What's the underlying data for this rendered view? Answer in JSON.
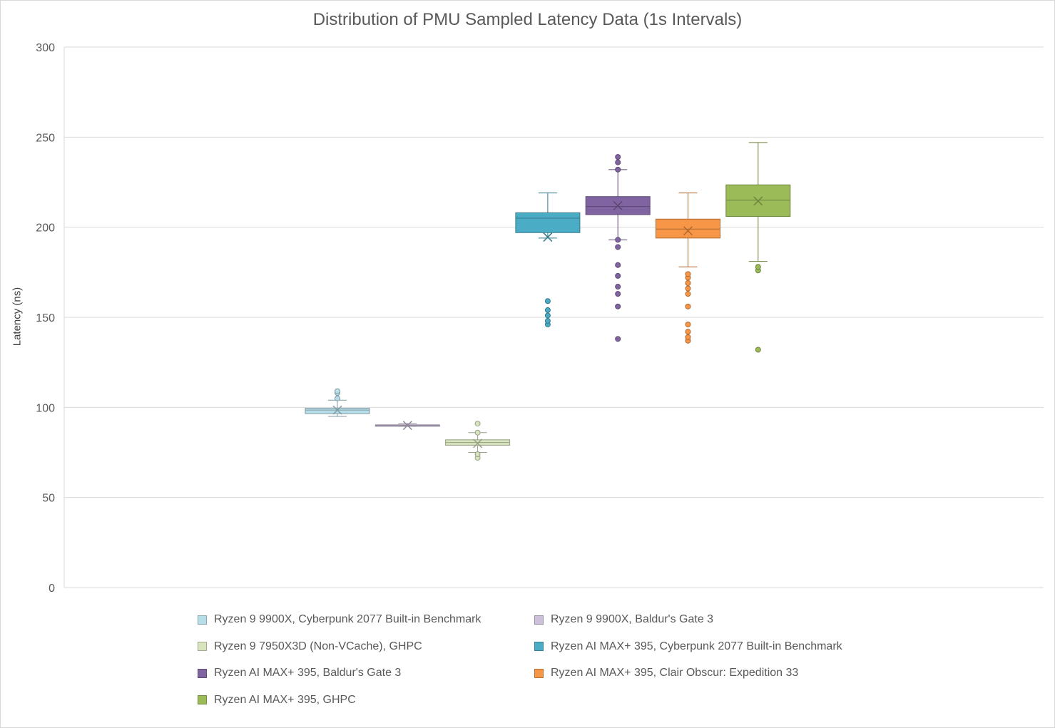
{
  "chart_data": {
    "type": "box",
    "title": "Distribution of PMU Sampled Latency Data (1s Intervals)",
    "xlabel": "",
    "ylabel": "Latency (ns)",
    "ylim": [
      0,
      300
    ],
    "yticks": [
      0,
      50,
      100,
      150,
      200,
      250,
      300
    ],
    "grid": true,
    "legend_position": "bottom",
    "series": [
      {
        "name": "Ryzen 9 9900X, Cyberpunk 2077 Built-in Benchmark",
        "color": "#b7dee8",
        "min": 95,
        "q1": 96.5,
        "median": 98.5,
        "q3": 99.5,
        "max": 104,
        "mean": 98.5,
        "outliers": [
          105,
          108,
          109
        ]
      },
      {
        "name": "Ryzen 9 9900X, Baldur's Gate 3",
        "color": "#ccc0da",
        "min": 89.5,
        "q1": 89.5,
        "median": 90,
        "q3": 90.3,
        "max": 91,
        "mean": 90,
        "outliers": []
      },
      {
        "name": "Ryzen 9 7950X3D (Non-VCache), GHPC",
        "color": "#d7e4bd",
        "min": 75,
        "q1": 79,
        "median": 80.5,
        "q3": 82,
        "max": 86,
        "mean": 80,
        "outliers": [
          72,
          74,
          86,
          91
        ]
      },
      {
        "name": "Ryzen AI MAX+ 395, Cyberpunk 2077 Built-in Benchmark",
        "color": "#4bacc6",
        "min": 194,
        "q1": 197,
        "median": 205,
        "q3": 208,
        "max": 219,
        "mean": 194.5,
        "outliers": [
          146,
          148,
          151,
          154,
          159
        ]
      },
      {
        "name": "Ryzen AI MAX+ 395, Baldur's Gate 3",
        "color": "#8064a2",
        "min": 193,
        "q1": 207,
        "median": 211.5,
        "q3": 217,
        "max": 232,
        "mean": 212,
        "outliers": [
          138,
          156,
          163,
          167,
          173,
          179,
          189,
          193,
          232,
          236,
          239
        ]
      },
      {
        "name": "Ryzen AI MAX+ 395, Clair Obscur: Expedition 33",
        "color": "#f79646",
        "min": 178,
        "q1": 194,
        "median": 199,
        "q3": 204.5,
        "max": 219,
        "mean": 198,
        "outliers": [
          137,
          139,
          142,
          146,
          156,
          163,
          166,
          169,
          172,
          174
        ]
      },
      {
        "name": "Ryzen AI MAX+ 395, GHPC",
        "color": "#9bbb59",
        "min": 181,
        "q1": 206,
        "median": 215,
        "q3": 223.5,
        "max": 247,
        "mean": 214.5,
        "outliers": [
          132,
          176,
          178
        ]
      }
    ]
  }
}
